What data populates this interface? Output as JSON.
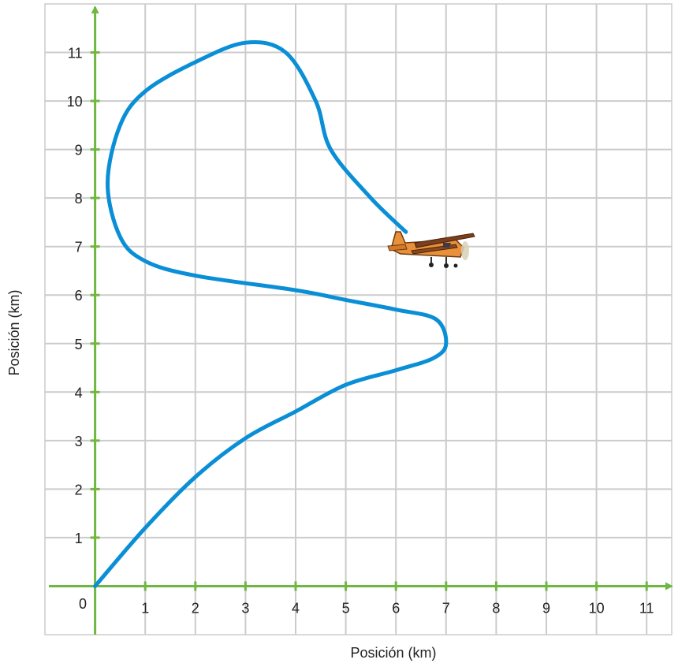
{
  "chart_data": {
    "type": "line",
    "title": "",
    "xlabel": "Posición (km)",
    "ylabel": "Posición (km)",
    "origin_label": "0",
    "xlim": [
      -1,
      11.5
    ],
    "ylim": [
      -1,
      12
    ],
    "grid": true,
    "legend": "none",
    "x_ticks": [
      "1",
      "2",
      "3",
      "4",
      "5",
      "6",
      "7",
      "8",
      "9",
      "10",
      "11"
    ],
    "y_ticks": [
      "1",
      "2",
      "3",
      "4",
      "5",
      "6",
      "7",
      "8",
      "9",
      "10",
      "11"
    ],
    "series": [
      {
        "path": [
          [
            0,
            0
          ],
          [
            1,
            1.2
          ],
          [
            2,
            2.25
          ],
          [
            3,
            3.05
          ],
          [
            4,
            3.6
          ],
          [
            5,
            4.15
          ],
          [
            6,
            4.45
          ],
          [
            6.75,
            4.7
          ],
          [
            7,
            5.0
          ],
          [
            6.8,
            5.5
          ],
          [
            6,
            5.7
          ],
          [
            5,
            5.9
          ],
          [
            4,
            6.1
          ],
          [
            2,
            6.4
          ],
          [
            1,
            6.7
          ],
          [
            0.5,
            7.2
          ],
          [
            0.25,
            8.3
          ],
          [
            0.5,
            9.5
          ],
          [
            1,
            10.2
          ],
          [
            2,
            10.8
          ],
          [
            3,
            11.2
          ],
          [
            3.8,
            11.0
          ],
          [
            4.4,
            10.0
          ],
          [
            4.7,
            9.0
          ],
          [
            5.5,
            8.0
          ],
          [
            6.2,
            7.3
          ]
        ]
      }
    ],
    "colors": {
      "grid": "#cccccc",
      "axis": "#6fb742",
      "line": "#0a8fd6",
      "text": "#222222"
    }
  },
  "icons": {
    "airplane": "airplane-icon"
  }
}
